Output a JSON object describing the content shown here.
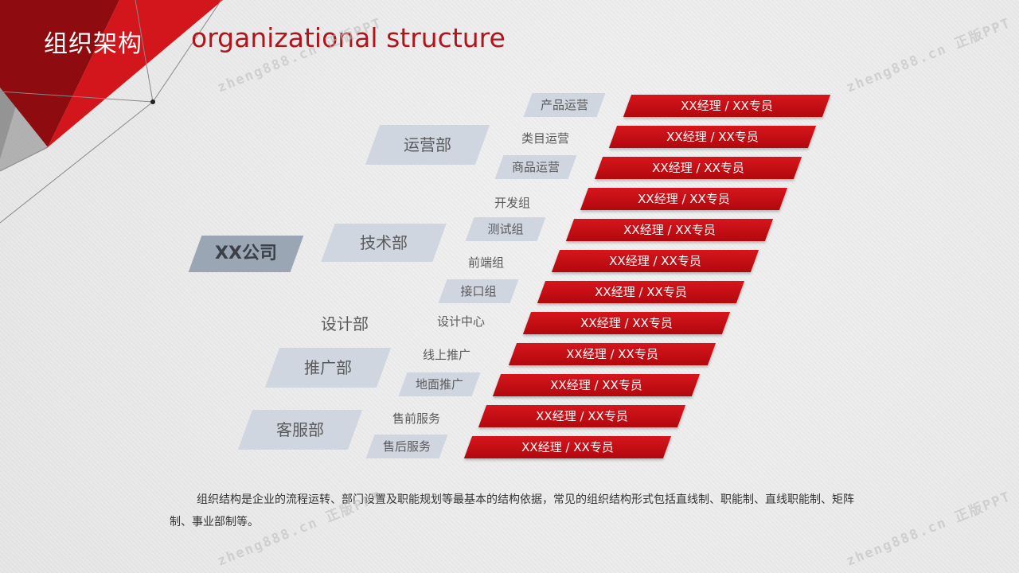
{
  "header": {
    "title_cn": "组织架构",
    "title_en": "organizational structure"
  },
  "company": "XX公司",
  "departments": [
    "运营部",
    "技术部",
    "设计部",
    "推广部",
    "客服部"
  ],
  "subunits": [
    "产品运营",
    "类目运营",
    "商品运营",
    "开发组",
    "测试组",
    "前端组",
    "接口组",
    "设计中心",
    "线上推广",
    "地面推广",
    "售前服务",
    "售后服务"
  ],
  "roles": [
    "XX经理 / XX专员",
    "XX经理 / XX专员",
    "XX经理 / XX专员",
    "XX经理 / XX专员",
    "XX经理 / XX专员",
    "XX经理 / XX专员",
    "XX经理 / XX专员",
    "XX经理 / XX专员",
    "XX经理 / XX专员",
    "XX经理 / XX专员",
    "XX经理 / XX专员",
    "XX经理 / XX专员"
  ],
  "description": "组织结构是企业的流程运转、部门设置及职能规划等最基本的结构依据，常见的组织结构形式包括直线制、职能制、直线职能制、矩阵制、事业部制等。",
  "watermark": "zheng888.cn 正版PPT",
  "colors": {
    "accent_red": "#c40c12",
    "para_fill": "#cfd6e0",
    "company_fill": "#9ba6b5"
  }
}
